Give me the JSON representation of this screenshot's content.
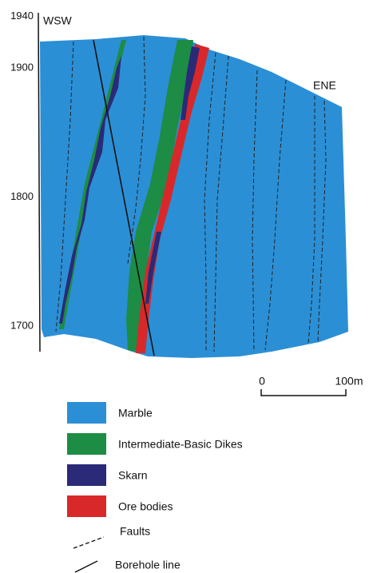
{
  "section": {
    "west_label": "WSW",
    "east_label": "ENE",
    "elevation_ticks": [
      1940,
      1900,
      1800,
      1700
    ],
    "scale_bar": {
      "start_label": "0",
      "end_label": "100m"
    }
  },
  "legend": {
    "items": [
      {
        "label": "Marble",
        "color": "#2b8fd5"
      },
      {
        "label": "Intermediate-Basic Dikes",
        "color": "#1d8c45"
      },
      {
        "label": "Skarn",
        "color": "#2a2a78"
      },
      {
        "label": "Ore bodies",
        "color": "#d8282a"
      },
      {
        "label": "Faults"
      },
      {
        "label": "Borehole line"
      }
    ]
  }
}
